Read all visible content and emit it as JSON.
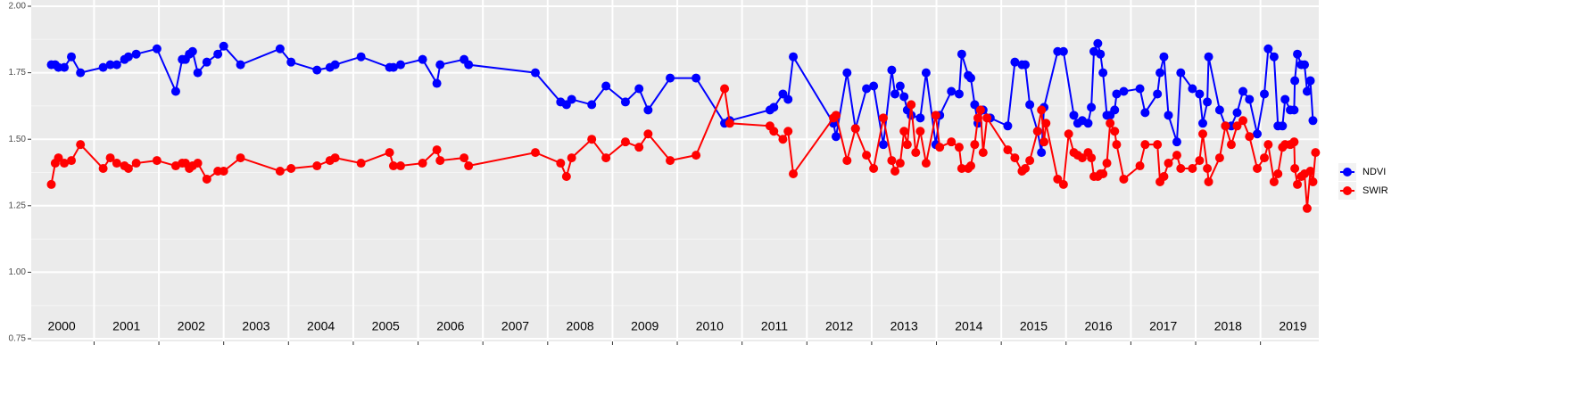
{
  "chart_data": {
    "type": "line",
    "grid": true,
    "legend": "right",
    "ylim": [
      0.75,
      2.0
    ],
    "yticks": [
      {
        "value": 0.75,
        "label": "0.75"
      },
      {
        "value": 1.0,
        "label": "1.00"
      },
      {
        "value": 1.25,
        "label": "1.25"
      },
      {
        "value": 1.5,
        "label": "1.50"
      },
      {
        "value": 1.75,
        "label": "1.75"
      },
      {
        "value": 2.0,
        "label": "2.00"
      }
    ],
    "xlim": [
      2000.03,
      2019.9
    ],
    "xticks": [
      2001,
      2002,
      2003,
      2004,
      2005,
      2006,
      2007,
      2008,
      2009,
      2010,
      2011,
      2012,
      2013,
      2014,
      2015,
      2016,
      2017,
      2018,
      2019
    ],
    "year_labels": [
      2000,
      2001,
      2002,
      2003,
      2004,
      2005,
      2006,
      2007,
      2008,
      2009,
      2010,
      2011,
      2012,
      2013,
      2014,
      2015,
      2016,
      2017,
      2018,
      2019
    ],
    "series": [
      {
        "name": "NDVI",
        "color": "#0000ff",
        "x": [
          2000.34,
          2000.4,
          2000.45,
          2000.54,
          2000.65,
          2000.79,
          2001.14,
          2001.25,
          2001.35,
          2001.47,
          2001.53,
          2001.65,
          2001.97,
          2002.26,
          2002.36,
          2002.41,
          2002.47,
          2002.52,
          2002.6,
          2002.74,
          2002.91,
          2003.0,
          2003.26,
          2003.87,
          2004.04,
          2004.44,
          2004.64,
          2004.72,
          2005.12,
          2005.56,
          2005.62,
          2005.73,
          2006.07,
          2006.29,
          2006.34,
          2006.71,
          2006.78,
          2007.81,
          2008.2,
          2008.29,
          2008.37,
          2008.68,
          2008.9,
          2009.2,
          2009.41,
          2009.55,
          2009.89,
          2010.29,
          2010.73,
          2010.81,
          2011.43,
          2011.49,
          2011.63,
          2011.71,
          2011.79,
          2012.41,
          2012.45,
          2012.62,
          2012.75,
          2012.92,
          2013.03,
          2013.18,
          2013.31,
          2013.36,
          2013.44,
          2013.5,
          2013.55,
          2013.61,
          2013.75,
          2013.84,
          2013.99,
          2014.05,
          2014.23,
          2014.35,
          2014.39,
          2014.49,
          2014.53,
          2014.59,
          2014.64,
          2014.72,
          2014.83,
          2015.1,
          2015.21,
          2015.32,
          2015.37,
          2015.44,
          2015.56,
          2015.62,
          2015.66,
          2015.87,
          2015.96,
          2016.12,
          2016.18,
          2016.25,
          2016.34,
          2016.39,
          2016.43,
          2016.49,
          2016.53,
          2016.57,
          2016.63,
          2016.68,
          2016.75,
          2016.78,
          2016.89,
          2017.14,
          2017.22,
          2017.41,
          2017.45,
          2017.51,
          2017.58,
          2017.71,
          2017.77,
          2017.95,
          2018.06,
          2018.11,
          2018.18,
          2018.2,
          2018.37,
          2018.46,
          2018.55,
          2018.64,
          2018.73,
          2018.83,
          2018.95,
          2019.06,
          2019.12,
          2019.21,
          2019.27,
          2019.34,
          2019.38,
          2019.46,
          2019.52,
          2019.53,
          2019.57,
          2019.63,
          2019.68,
          2019.72,
          2019.77,
          2019.81
        ],
        "values": [
          1.78,
          1.78,
          1.77,
          1.77,
          1.81,
          1.75,
          1.77,
          1.78,
          1.78,
          1.8,
          1.81,
          1.82,
          1.84,
          1.68,
          1.8,
          1.8,
          1.82,
          1.83,
          1.75,
          1.79,
          1.82,
          1.85,
          1.78,
          1.84,
          1.79,
          1.76,
          1.77,
          1.78,
          1.81,
          1.77,
          1.77,
          1.78,
          1.8,
          1.71,
          1.78,
          1.8,
          1.78,
          1.75,
          1.64,
          1.63,
          1.65,
          1.63,
          1.7,
          1.64,
          1.69,
          1.61,
          1.73,
          1.73,
          1.56,
          1.57,
          1.61,
          1.62,
          1.67,
          1.65,
          1.81,
          1.56,
          1.51,
          1.75,
          1.54,
          1.69,
          1.7,
          1.48,
          1.76,
          1.67,
          1.7,
          1.66,
          1.61,
          1.59,
          1.58,
          1.75,
          1.48,
          1.59,
          1.68,
          1.67,
          1.82,
          1.74,
          1.73,
          1.63,
          1.56,
          1.61,
          1.58,
          1.55,
          1.79,
          1.78,
          1.78,
          1.63,
          1.53,
          1.45,
          1.62,
          1.83,
          1.83,
          1.59,
          1.56,
          1.57,
          1.56,
          1.62,
          1.83,
          1.86,
          1.82,
          1.75,
          1.59,
          1.59,
          1.61,
          1.67,
          1.68,
          1.69,
          1.6,
          1.67,
          1.75,
          1.81,
          1.59,
          1.49,
          1.75,
          1.69,
          1.67,
          1.56,
          1.64,
          1.81,
          1.61,
          1.55,
          1.55,
          1.6,
          1.68,
          1.65,
          1.52,
          1.67,
          1.84,
          1.81,
          1.55,
          1.55,
          1.65,
          1.61,
          1.61,
          1.72,
          1.82,
          1.78,
          1.78,
          1.68,
          1.72,
          1.57
        ]
      },
      {
        "name": "SWIR",
        "color": "#ff0000",
        "x": [
          2000.34,
          2000.4,
          2000.45,
          2000.54,
          2000.65,
          2000.79,
          2001.14,
          2001.25,
          2001.35,
          2001.47,
          2001.53,
          2001.65,
          2001.97,
          2002.26,
          2002.36,
          2002.41,
          2002.47,
          2002.52,
          2002.6,
          2002.74,
          2002.91,
          2003.0,
          2003.26,
          2003.87,
          2004.04,
          2004.44,
          2004.64,
          2004.72,
          2005.12,
          2005.56,
          2005.62,
          2005.73,
          2006.07,
          2006.29,
          2006.34,
          2006.71,
          2006.78,
          2007.81,
          2008.2,
          2008.29,
          2008.37,
          2008.68,
          2008.9,
          2009.2,
          2009.41,
          2009.55,
          2009.89,
          2010.29,
          2010.73,
          2010.81,
          2011.43,
          2011.49,
          2011.63,
          2011.71,
          2011.79,
          2012.41,
          2012.45,
          2012.62,
          2012.75,
          2012.92,
          2013.03,
          2013.18,
          2013.31,
          2013.36,
          2013.44,
          2013.5,
          2013.55,
          2013.61,
          2013.68,
          2013.75,
          2013.84,
          2013.99,
          2014.05,
          2014.23,
          2014.35,
          2014.39,
          2014.49,
          2014.53,
          2014.59,
          2014.64,
          2014.68,
          2014.72,
          2014.78,
          2015.1,
          2015.21,
          2015.32,
          2015.37,
          2015.44,
          2015.56,
          2015.62,
          2015.66,
          2015.69,
          2015.87,
          2015.96,
          2016.04,
          2016.12,
          2016.18,
          2016.25,
          2016.34,
          2016.39,
          2016.43,
          2016.49,
          2016.53,
          2016.57,
          2016.63,
          2016.68,
          2016.75,
          2016.78,
          2016.89,
          2017.14,
          2017.22,
          2017.41,
          2017.45,
          2017.51,
          2017.58,
          2017.71,
          2017.77,
          2017.95,
          2018.06,
          2018.11,
          2018.18,
          2018.2,
          2018.37,
          2018.46,
          2018.55,
          2018.64,
          2018.73,
          2018.83,
          2018.95,
          2019.06,
          2019.12,
          2019.21,
          2019.27,
          2019.34,
          2019.38,
          2019.46,
          2019.52,
          2019.53,
          2019.57,
          2019.63,
          2019.68,
          2019.72,
          2019.77,
          2019.81,
          2019.85
        ],
        "values": [
          1.33,
          1.41,
          1.43,
          1.41,
          1.42,
          1.48,
          1.39,
          1.43,
          1.41,
          1.4,
          1.39,
          1.41,
          1.42,
          1.4,
          1.41,
          1.41,
          1.39,
          1.4,
          1.41,
          1.35,
          1.38,
          1.38,
          1.43,
          1.38,
          1.39,
          1.4,
          1.42,
          1.43,
          1.41,
          1.45,
          1.4,
          1.4,
          1.41,
          1.46,
          1.42,
          1.43,
          1.4,
          1.45,
          1.41,
          1.36,
          1.43,
          1.5,
          1.43,
          1.49,
          1.47,
          1.52,
          1.42,
          1.44,
          1.69,
          1.56,
          1.55,
          1.53,
          1.5,
          1.53,
          1.37,
          1.58,
          1.59,
          1.42,
          1.54,
          1.44,
          1.39,
          1.58,
          1.42,
          1.38,
          1.41,
          1.53,
          1.48,
          1.63,
          1.45,
          1.53,
          1.41,
          1.59,
          1.47,
          1.49,
          1.47,
          1.39,
          1.39,
          1.4,
          1.48,
          1.58,
          1.61,
          1.45,
          1.58,
          1.46,
          1.43,
          1.38,
          1.39,
          1.42,
          1.53,
          1.61,
          1.49,
          1.56,
          1.35,
          1.33,
          1.52,
          1.45,
          1.44,
          1.43,
          1.45,
          1.43,
          1.36,
          1.36,
          1.37,
          1.37,
          1.41,
          1.56,
          1.53,
          1.48,
          1.35,
          1.4,
          1.48,
          1.48,
          1.34,
          1.36,
          1.41,
          1.44,
          1.39,
          1.39,
          1.42,
          1.52,
          1.39,
          1.34,
          1.43,
          1.55,
          1.48,
          1.55,
          1.57,
          1.51,
          1.39,
          1.43,
          1.48,
          1.34,
          1.37,
          1.47,
          1.48,
          1.48,
          1.49,
          1.39,
          1.33,
          1.36,
          1.37,
          1.24,
          1.38,
          1.34,
          1.45
        ]
      }
    ]
  }
}
